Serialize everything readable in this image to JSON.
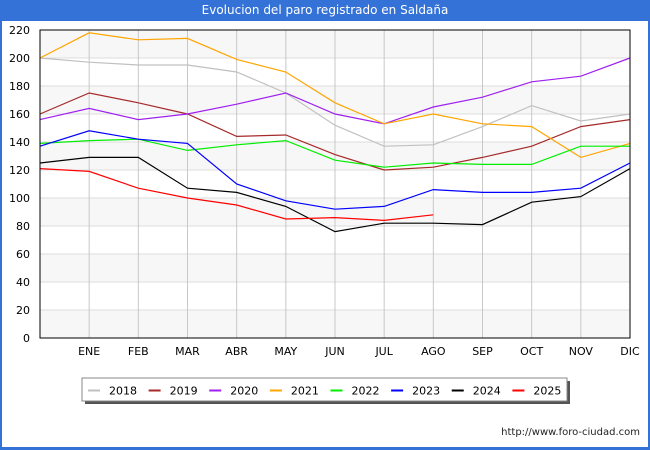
{
  "header": {
    "title": "Evolucion del paro registrado en Saldaña"
  },
  "footer": {
    "url": "http://www.foro-ciudad.com"
  },
  "chart_data": {
    "type": "line",
    "title": "Evolucion del paro registrado en Saldaña",
    "xlabel": "",
    "ylabel": "",
    "x_points": [
      "",
      "ENE",
      "FEB",
      "MAR",
      "ABR",
      "MAY",
      "JUN",
      "JUL",
      "AGO",
      "SEP",
      "OCT",
      "NOV",
      "DIC"
    ],
    "categories": [
      "ENE",
      "FEB",
      "MAR",
      "ABR",
      "MAY",
      "JUN",
      "JUL",
      "AGO",
      "SEP",
      "OCT",
      "NOV",
      "DIC"
    ],
    "ylim": [
      0,
      220
    ],
    "yticks": [
      0,
      20,
      40,
      60,
      80,
      100,
      120,
      140,
      160,
      180,
      200,
      220
    ],
    "grid": true,
    "legend_position": "bottom",
    "series": [
      {
        "name": "2018",
        "color": "#c0c0c0",
        "values": [
          200,
          197,
          195,
          195,
          190,
          175,
          152,
          137,
          138,
          151,
          166,
          155,
          160
        ]
      },
      {
        "name": "2019",
        "color": "#a52a2a",
        "values": [
          160,
          175,
          168,
          160,
          144,
          145,
          131,
          120,
          122,
          129,
          137,
          151,
          156
        ]
      },
      {
        "name": "2020",
        "color": "#a020f0",
        "values": [
          156,
          164,
          156,
          160,
          167,
          175,
          160,
          153,
          165,
          172,
          183,
          187,
          200
        ]
      },
      {
        "name": "2021",
        "color": "#ffa500",
        "values": [
          200,
          218,
          213,
          214,
          199,
          190,
          168,
          153,
          160,
          153,
          151,
          129,
          139
        ]
      },
      {
        "name": "2022",
        "color": "#00ee00",
        "values": [
          139,
          141,
          142,
          134,
          138,
          141,
          127,
          122,
          125,
          124,
          124,
          137,
          137
        ]
      },
      {
        "name": "2023",
        "color": "#0000ff",
        "values": [
          137,
          148,
          142,
          139,
          110,
          98,
          92,
          94,
          106,
          104,
          104,
          107,
          125
        ]
      },
      {
        "name": "2024",
        "color": "#000000",
        "values": [
          125,
          129,
          129,
          107,
          104,
          94,
          76,
          82,
          82,
          81,
          97,
          101,
          121
        ]
      },
      {
        "name": "2025",
        "color": "#ff0000",
        "values": [
          121,
          119,
          107,
          100,
          95,
          85,
          86,
          84,
          88,
          null,
          null,
          null,
          null
        ]
      }
    ]
  }
}
